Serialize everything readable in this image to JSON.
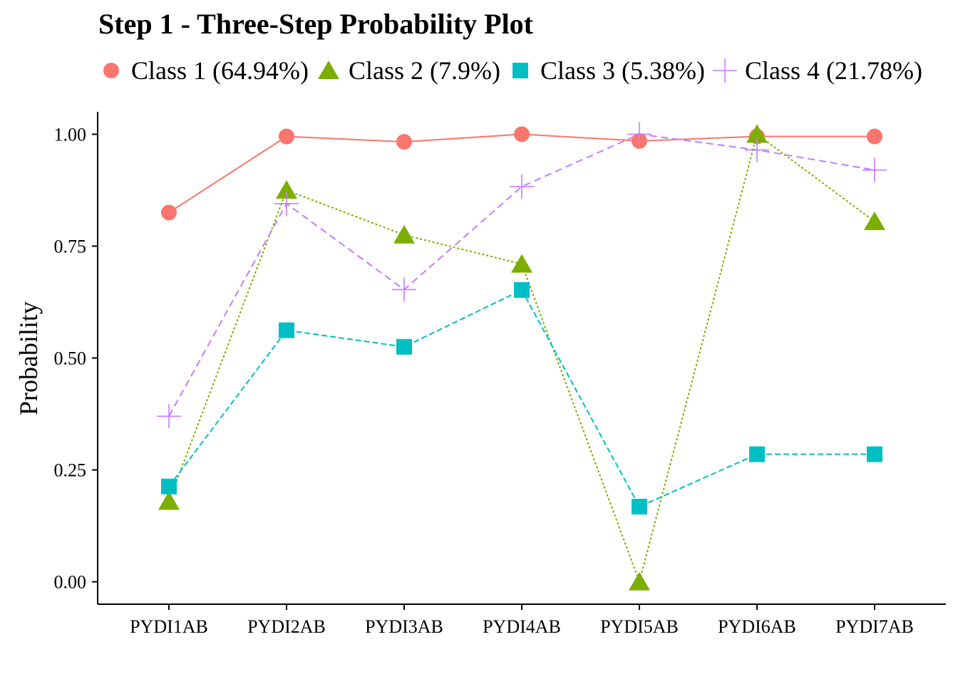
{
  "chart_data": {
    "type": "line",
    "title": "Step 1 - Three-Step Probability Plot",
    "xlabel": "",
    "ylabel": "Probability",
    "categories": [
      "PYDI1AB",
      "PYDI2AB",
      "PYDI3AB",
      "PYDI4AB",
      "PYDI5AB",
      "PYDI6AB",
      "PYDI7AB"
    ],
    "ylim": [
      -0.05,
      1.05
    ],
    "yticks": [
      "0.00",
      "0.25",
      "0.50",
      "0.75",
      "1.00"
    ],
    "grid": false,
    "legend_position": "top",
    "series": [
      {
        "name": "Class 1 (64.94%)",
        "color": "#F8766D",
        "marker": "circle",
        "linestyle": "solid",
        "values": [
          0.825,
          0.995,
          0.983,
          1.0,
          0.985,
          0.995,
          0.995
        ]
      },
      {
        "name": "Class 2 (7.9%)",
        "color": "#7CAE00",
        "marker": "triangle",
        "linestyle": "dotted",
        "values": [
          0.18,
          0.875,
          0.775,
          0.71,
          0.0,
          1.0,
          0.805
        ]
      },
      {
        "name": "Class 3 (5.38%)",
        "color": "#00BFC4",
        "marker": "square",
        "linestyle": "dashed",
        "values": [
          0.213,
          0.562,
          0.525,
          0.652,
          0.168,
          0.285,
          0.285
        ]
      },
      {
        "name": "Class 4 (21.78%)",
        "color": "#C77CFF",
        "marker": "plus",
        "linestyle": "longdash",
        "values": [
          0.37,
          0.845,
          0.653,
          0.883,
          1.0,
          0.965,
          0.92
        ]
      }
    ]
  }
}
